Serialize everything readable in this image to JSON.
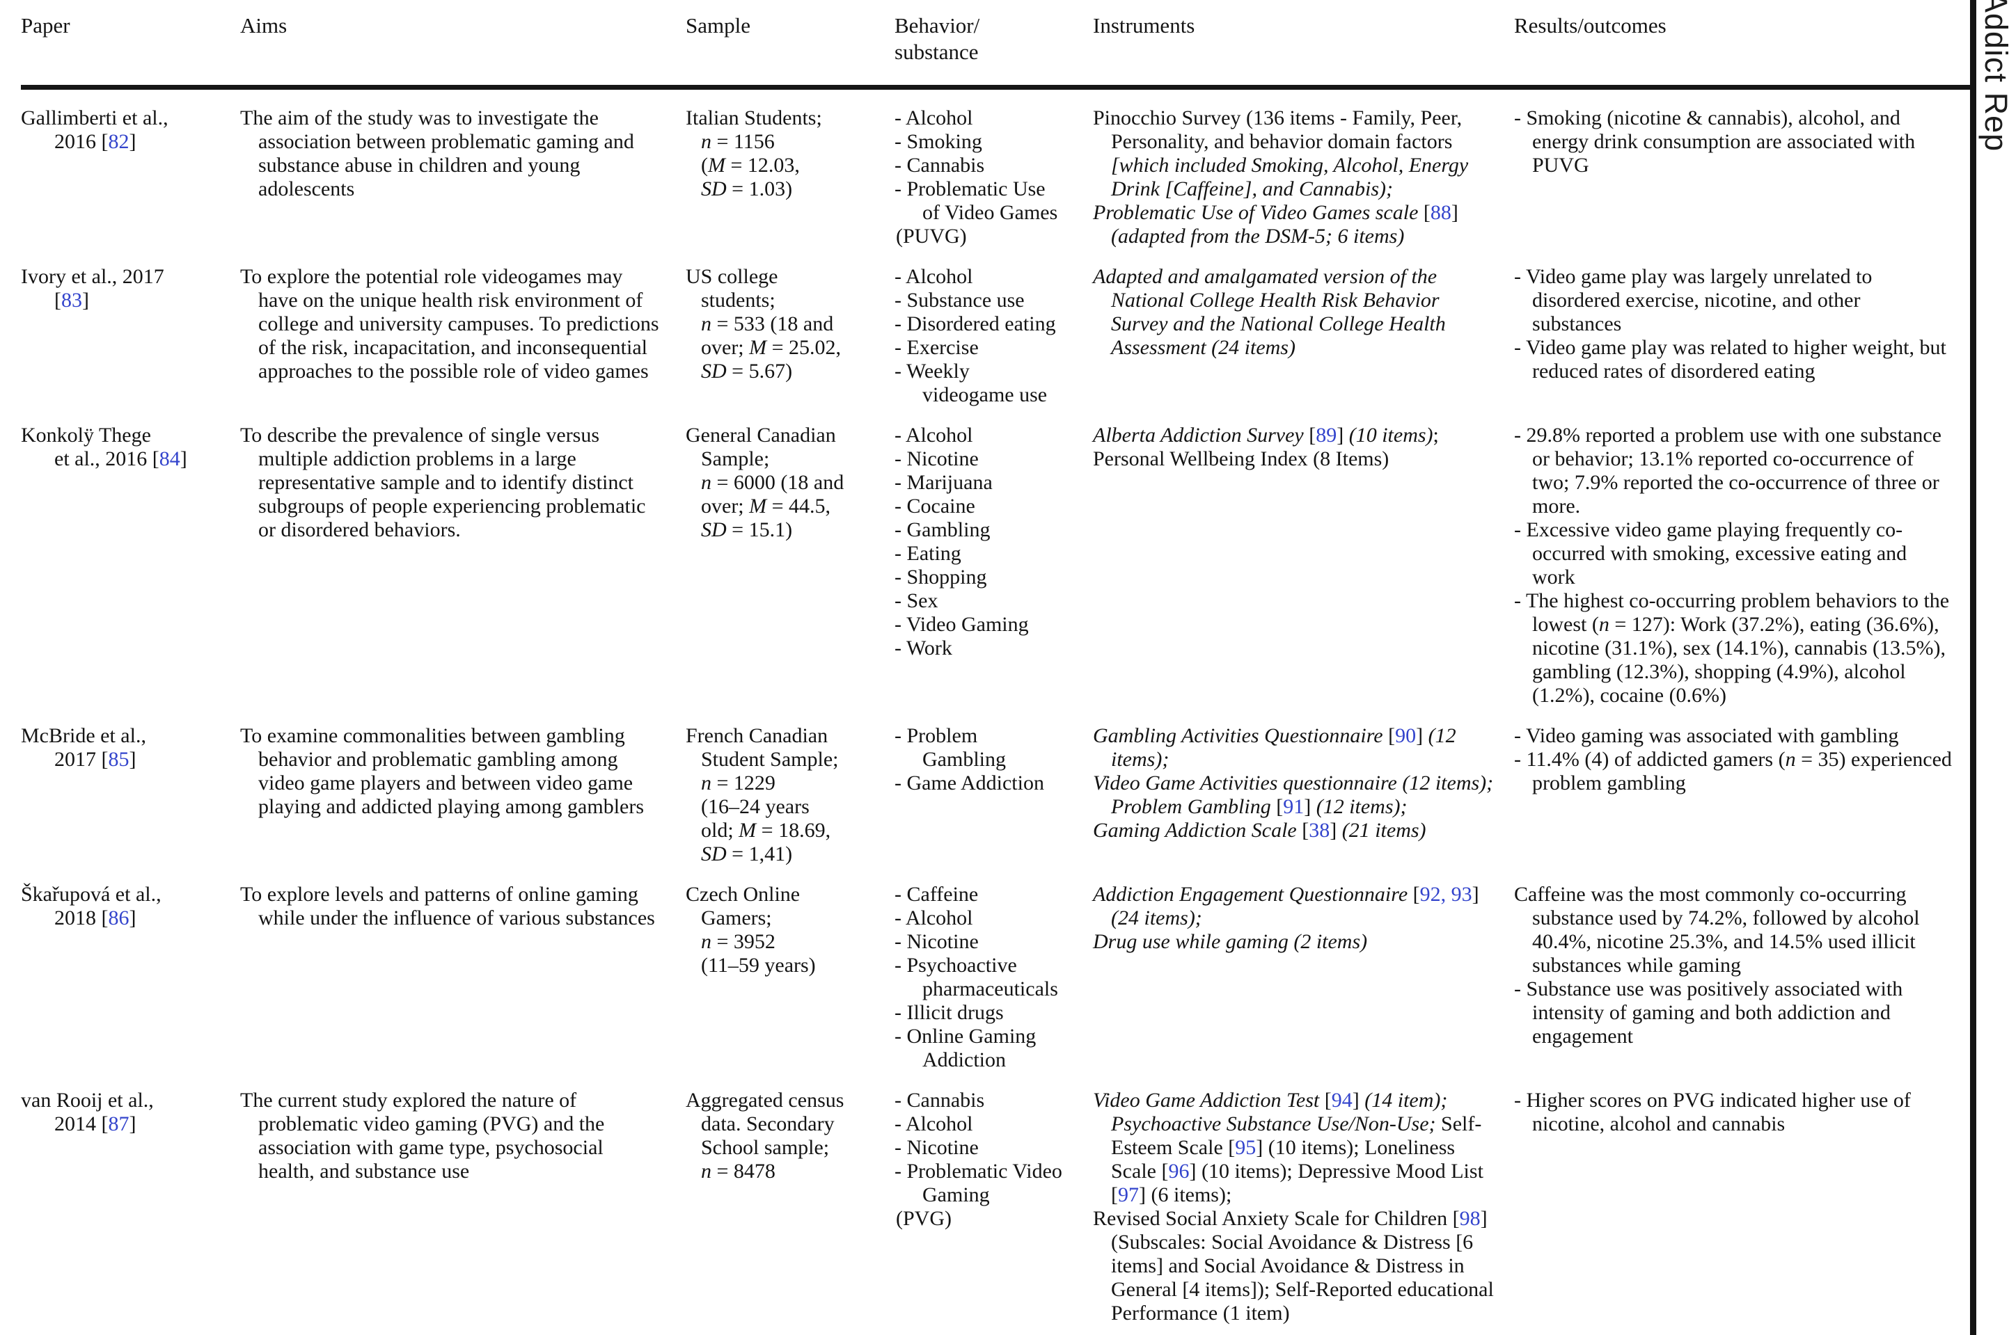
{
  "page": {
    "running_head": "Addict Rep",
    "link_color": "#3344cc",
    "text_color": "#141414"
  },
  "table": {
    "headers": [
      {
        "key": "paper",
        "label": "Paper"
      },
      {
        "key": "aims",
        "label": "Aims"
      },
      {
        "key": "sample",
        "label": "Sample"
      },
      {
        "key": "behavior-substance",
        "label": "Behavior/\nsubstance"
      },
      {
        "key": "instruments",
        "label": "Instruments"
      },
      {
        "key": "results-outcomes",
        "label": "Results/outcomes"
      }
    ],
    "rows": [
      {
        "paper": [
          [
            "Gallimberti et al.,"
          ],
          [
            "2016 [",
            {
              "t": "82",
              "ref": true
            },
            "]"
          ]
        ],
        "aims": "The aim of the study was to investigate the association between problematic gaming and substance abuse in children and young adolescents",
        "sample": [
          [
            "Italian Students;"
          ],
          [
            {
              "t": "n",
              "i": true
            },
            " = 1156"
          ],
          [
            "(",
            {
              "t": "M",
              "i": true
            },
            " = 12.03,"
          ],
          [
            {
              "t": "SD",
              "i": true
            },
            " = 1.03)"
          ]
        ],
        "behavior": [
          {
            "lines": [
              [
                "- Alcohol"
              ]
            ]
          },
          {
            "lines": [
              [
                "- Smoking"
              ]
            ]
          },
          {
            "lines": [
              [
                "- Cannabis"
              ]
            ]
          },
          {
            "lines": [
              [
                "- Problematic Use"
              ],
              [
                "of Video Games"
              ],
              [
                "(PUVG)"
              ]
            ]
          }
        ],
        "instruments": [
          [
            "Pinocchio Survey (136 items - Family, Peer, Personality, and behavior domain factors ",
            {
              "t": "[which included Smoking, Alcohol, Energy Drink [Caffeine], and Cannabis);",
              "i": true
            }
          ],
          [
            {
              "t": "Problematic Use of Video Games scale ",
              "i": true
            },
            "[",
            {
              "t": "88",
              "ref": true
            },
            "] ",
            {
              "t": "(adapted from the DSM-5; 6 items)",
              "i": true
            }
          ]
        ],
        "results": [
          [
            "- Smoking (nicotine & cannabis), alcohol, and energy drink consumption are associated with PUVG"
          ]
        ]
      },
      {
        "paper": [
          [
            "Ivory et al., 2017"
          ],
          [
            "[",
            {
              "t": "83",
              "ref": true
            },
            "]"
          ]
        ],
        "aims": "To explore the potential role videogames may have on the unique health risk environment of college and university campuses. To predictions of the risk, incapacitation, and inconsequential approaches to the possible role of video games",
        "sample": [
          [
            "US college"
          ],
          [
            "students;"
          ],
          [
            {
              "t": "n",
              "i": true
            },
            " = 533 (18 and"
          ],
          [
            "over; ",
            {
              "t": "M",
              "i": true
            },
            " = 25.02,"
          ],
          [
            {
              "t": "SD",
              "i": true
            },
            " = 5.67)"
          ]
        ],
        "behavior": [
          {
            "lines": [
              [
                "- Alcohol"
              ]
            ]
          },
          {
            "lines": [
              [
                "- Substance use"
              ]
            ]
          },
          {
            "lines": [
              [
                "- Disordered eating"
              ]
            ]
          },
          {
            "lines": [
              [
                "- Exercise"
              ]
            ]
          },
          {
            "lines": [
              [
                "- Weekly"
              ],
              [
                "videogame use"
              ]
            ]
          }
        ],
        "instruments": [
          [
            {
              "t": "Adapted and amalgamated version of the National College Health Risk Behavior Survey and the National College Health Assessment (24 items)",
              "i": true
            }
          ]
        ],
        "results": [
          [
            "- Video game play was largely unrelated to disordered exercise, nicotine, and other substances"
          ],
          [
            "- Video game play was related to higher weight, but reduced rates of disordered eating"
          ]
        ]
      },
      {
        "paper": [
          [
            "Konkolÿ Thege"
          ],
          [
            "et al., 2016 [",
            {
              "t": "84",
              "ref": true
            },
            "]"
          ]
        ],
        "aims": "To describe the prevalence of single versus multiple addiction problems in a large representative sample and to identify distinct subgroups of people experiencing problematic or disordered behaviors.",
        "sample": [
          [
            "General Canadian"
          ],
          [
            "Sample;"
          ],
          [
            {
              "t": "n",
              "i": true
            },
            " = 6000 (18 and"
          ],
          [
            "over; ",
            {
              "t": "M",
              "i": true
            },
            " = 44.5,"
          ],
          [
            {
              "t": "SD",
              "i": true
            },
            " = 15.1)"
          ]
        ],
        "behavior": [
          {
            "lines": [
              [
                "- Alcohol"
              ]
            ]
          },
          {
            "lines": [
              [
                "- Nicotine"
              ]
            ]
          },
          {
            "lines": [
              [
                "- Marijuana"
              ]
            ]
          },
          {
            "lines": [
              [
                "- Cocaine"
              ]
            ]
          },
          {
            "lines": [
              [
                "- Gambling"
              ]
            ]
          },
          {
            "lines": [
              [
                "- Eating"
              ]
            ]
          },
          {
            "lines": [
              [
                "- Shopping"
              ]
            ]
          },
          {
            "lines": [
              [
                "- Sex"
              ]
            ]
          },
          {
            "lines": [
              [
                "- Video Gaming"
              ]
            ]
          },
          {
            "lines": [
              [
                "- Work"
              ]
            ]
          }
        ],
        "instruments": [
          [
            {
              "t": "Alberta Addiction Survey ",
              "i": true
            },
            "[",
            {
              "t": "89",
              "ref": true
            },
            "] ",
            {
              "t": "(10 items)",
              "i": true
            },
            ";"
          ],
          [
            "Personal Wellbeing Index (8 Items)"
          ]
        ],
        "results": [
          [
            "- 29.8% reported a problem use with one substance or behavior; 13.1% reported co-occurrence of two; 7.9% reported the co-occurrence of three or more."
          ],
          [
            "- Excessive video game playing frequently co-occurred with smoking, excessive eating and work"
          ],
          [
            "- The highest co-occurring problem behaviors to the lowest (",
            {
              "t": "n",
              "i": true
            },
            " = 127): Work (37.2%), eating (36.6%), nicotine (31.1%), sex (14.1%), cannabis (13.5%), gambling (12.3%), shopping (4.9%), alcohol (1.2%), cocaine (0.6%)"
          ]
        ]
      },
      {
        "paper": [
          [
            "McBride et al.,"
          ],
          [
            "2017 [",
            {
              "t": "85",
              "ref": true
            },
            "]"
          ]
        ],
        "aims": "To examine commonalities between gambling behavior and problematic gambling among video game players and between video game playing and addicted playing among gamblers",
        "sample": [
          [
            "French Canadian"
          ],
          [
            "Student Sample;"
          ],
          [
            {
              "t": "n",
              "i": true
            },
            " = 1229"
          ],
          [
            "(16–24 years"
          ],
          [
            "old; ",
            {
              "t": "M",
              "i": true
            },
            " = 18.69,"
          ],
          [
            {
              "t": "SD",
              "i": true
            },
            " = 1,41)"
          ]
        ],
        "behavior": [
          {
            "lines": [
              [
                "- Problem"
              ],
              [
                "Gambling"
              ]
            ]
          },
          {
            "lines": [
              [
                "- Game Addiction"
              ]
            ]
          }
        ],
        "instruments": [
          [
            {
              "t": "Gambling Activities Questionnaire ",
              "i": true
            },
            "[",
            {
              "t": "90",
              "ref": true
            },
            "] ",
            {
              "t": "(12 items);",
              "i": true
            }
          ],
          [
            {
              "t": "Video Game Activities questionnaire (12 items); Problem Gambling ",
              "i": true
            },
            "[",
            {
              "t": "91",
              "ref": true
            },
            "] ",
            {
              "t": "(12 items);",
              "i": true
            }
          ],
          [
            {
              "t": "Gaming Addiction Scale ",
              "i": true
            },
            "[",
            {
              "t": "38",
              "ref": true
            },
            "] ",
            {
              "t": "(21 items)",
              "i": true
            }
          ]
        ],
        "results": [
          [
            "- Video gaming was associated with gambling"
          ],
          [
            "- 11.4% (4) of addicted gamers (",
            {
              "t": "n",
              "i": true
            },
            " = 35) experienced problem gambling"
          ]
        ]
      },
      {
        "paper": [
          [
            "Škařupová et al.,"
          ],
          [
            "2018 [",
            {
              "t": "86",
              "ref": true
            },
            "]"
          ]
        ],
        "aims": "To explore levels and patterns of online gaming while under the influence of various substances",
        "sample": [
          [
            "Czech Online"
          ],
          [
            "Gamers;"
          ],
          [
            {
              "t": "n",
              "i": true
            },
            " = 3952"
          ],
          [
            "(11–59 years)"
          ]
        ],
        "behavior": [
          {
            "lines": [
              [
                "- Caffeine"
              ]
            ]
          },
          {
            "lines": [
              [
                "- Alcohol"
              ]
            ]
          },
          {
            "lines": [
              [
                "- Nicotine"
              ]
            ]
          },
          {
            "lines": [
              [
                "- Psychoactive"
              ],
              [
                "pharmaceuticals"
              ]
            ]
          },
          {
            "lines": [
              [
                "- Illicit drugs"
              ]
            ]
          },
          {
            "lines": [
              [
                "- Online Gaming"
              ],
              [
                "Addiction"
              ]
            ]
          }
        ],
        "instruments": [
          [
            {
              "t": "Addiction Engagement Questionnaire ",
              "i": true
            },
            "[",
            {
              "t": "92, 93",
              "ref": true
            },
            "] ",
            {
              "t": "(24 items);",
              "i": true
            }
          ],
          [
            {
              "t": "Drug use while gaming (2 items)",
              "i": true
            }
          ]
        ],
        "results": [
          [
            "Caffeine was the most commonly co-occurring substance used by 74.2%, followed by alcohol 40.4%, nicotine 25.3%, and 14.5% used illicit substances while gaming"
          ],
          [
            "- Substance use was positively associated with intensity of gaming and both addiction and engagement"
          ]
        ]
      },
      {
        "paper": [
          [
            "van Rooij et al.,"
          ],
          [
            "2014 [",
            {
              "t": "87",
              "ref": true
            },
            "]"
          ]
        ],
        "aims": "The current study explored the nature of problematic video gaming (PVG) and the association with game type, psychosocial health, and substance use",
        "sample": [
          [
            "Aggregated census"
          ],
          [
            "data. Secondary"
          ],
          [
            "School sample;"
          ],
          [
            {
              "t": "n",
              "i": true
            },
            " = 8478"
          ]
        ],
        "behavior": [
          {
            "lines": [
              [
                "- Cannabis"
              ]
            ]
          },
          {
            "lines": [
              [
                "- Alcohol"
              ]
            ]
          },
          {
            "lines": [
              [
                "- Nicotine"
              ]
            ]
          },
          {
            "lines": [
              [
                "- Problematic Video"
              ],
              [
                "Gaming"
              ],
              [
                "(PVG)"
              ]
            ]
          }
        ],
        "instruments": [
          [
            {
              "t": "Video Game Addiction Test ",
              "i": true
            },
            "[",
            {
              "t": "94",
              "ref": true
            },
            "] ",
            {
              "t": "(14 item); Psychoactive Substance Use/Non-Use;",
              "i": true
            },
            " Self-Esteem Scale [",
            {
              "t": "95",
              "ref": true
            },
            "] (10 items); Loneliness Scale [",
            {
              "t": "96",
              "ref": true
            },
            "] (10 items); Depressive Mood List [",
            {
              "t": "97",
              "ref": true
            },
            "] (6 items);"
          ],
          [
            "Revised Social Anxiety Scale for Children [",
            {
              "t": "98",
              "ref": true
            },
            "] (Subscales: Social Avoidance & Distress [6 items] and Social Avoidance & Distress in General [4 items]); Self-Reported educational Performance (1 item)"
          ]
        ],
        "results": [
          [
            "- Higher scores on PVG indicated higher use of nicotine, alcohol and cannabis"
          ]
        ]
      }
    ]
  }
}
